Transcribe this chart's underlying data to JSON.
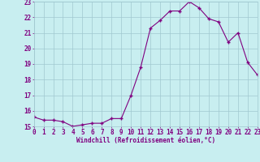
{
  "x": [
    0,
    1,
    2,
    3,
    4,
    5,
    6,
    7,
    8,
    9,
    10,
    11,
    12,
    13,
    14,
    15,
    16,
    17,
    18,
    19,
    20,
    21,
    22,
    23
  ],
  "y": [
    15.6,
    15.4,
    15.4,
    15.3,
    15.0,
    15.1,
    15.2,
    15.2,
    15.5,
    15.5,
    17.0,
    18.8,
    21.3,
    21.8,
    22.4,
    22.4,
    23.0,
    22.6,
    21.9,
    21.7,
    20.4,
    21.0,
    19.1,
    18.3
  ],
  "xlabel": "Windchill (Refroidissement éolien,°C)",
  "ylim_min": 15,
  "ylim_max": 23,
  "xlim_min": 0,
  "xlim_max": 23,
  "line_color": "#800080",
  "marker_color": "#800080",
  "bg_color": "#c8eef0",
  "grid_color": "#a0c8d0",
  "tick_label_color": "#800080",
  "xlabel_color": "#800080",
  "yticks": [
    15,
    16,
    17,
    18,
    19,
    20,
    21,
    22,
    23
  ],
  "xticks": [
    0,
    1,
    2,
    3,
    4,
    5,
    6,
    7,
    8,
    9,
    10,
    11,
    12,
    13,
    14,
    15,
    16,
    17,
    18,
    19,
    20,
    21,
    22,
    23
  ],
  "tick_fontsize": 5.5,
  "xlabel_fontsize": 5.5
}
